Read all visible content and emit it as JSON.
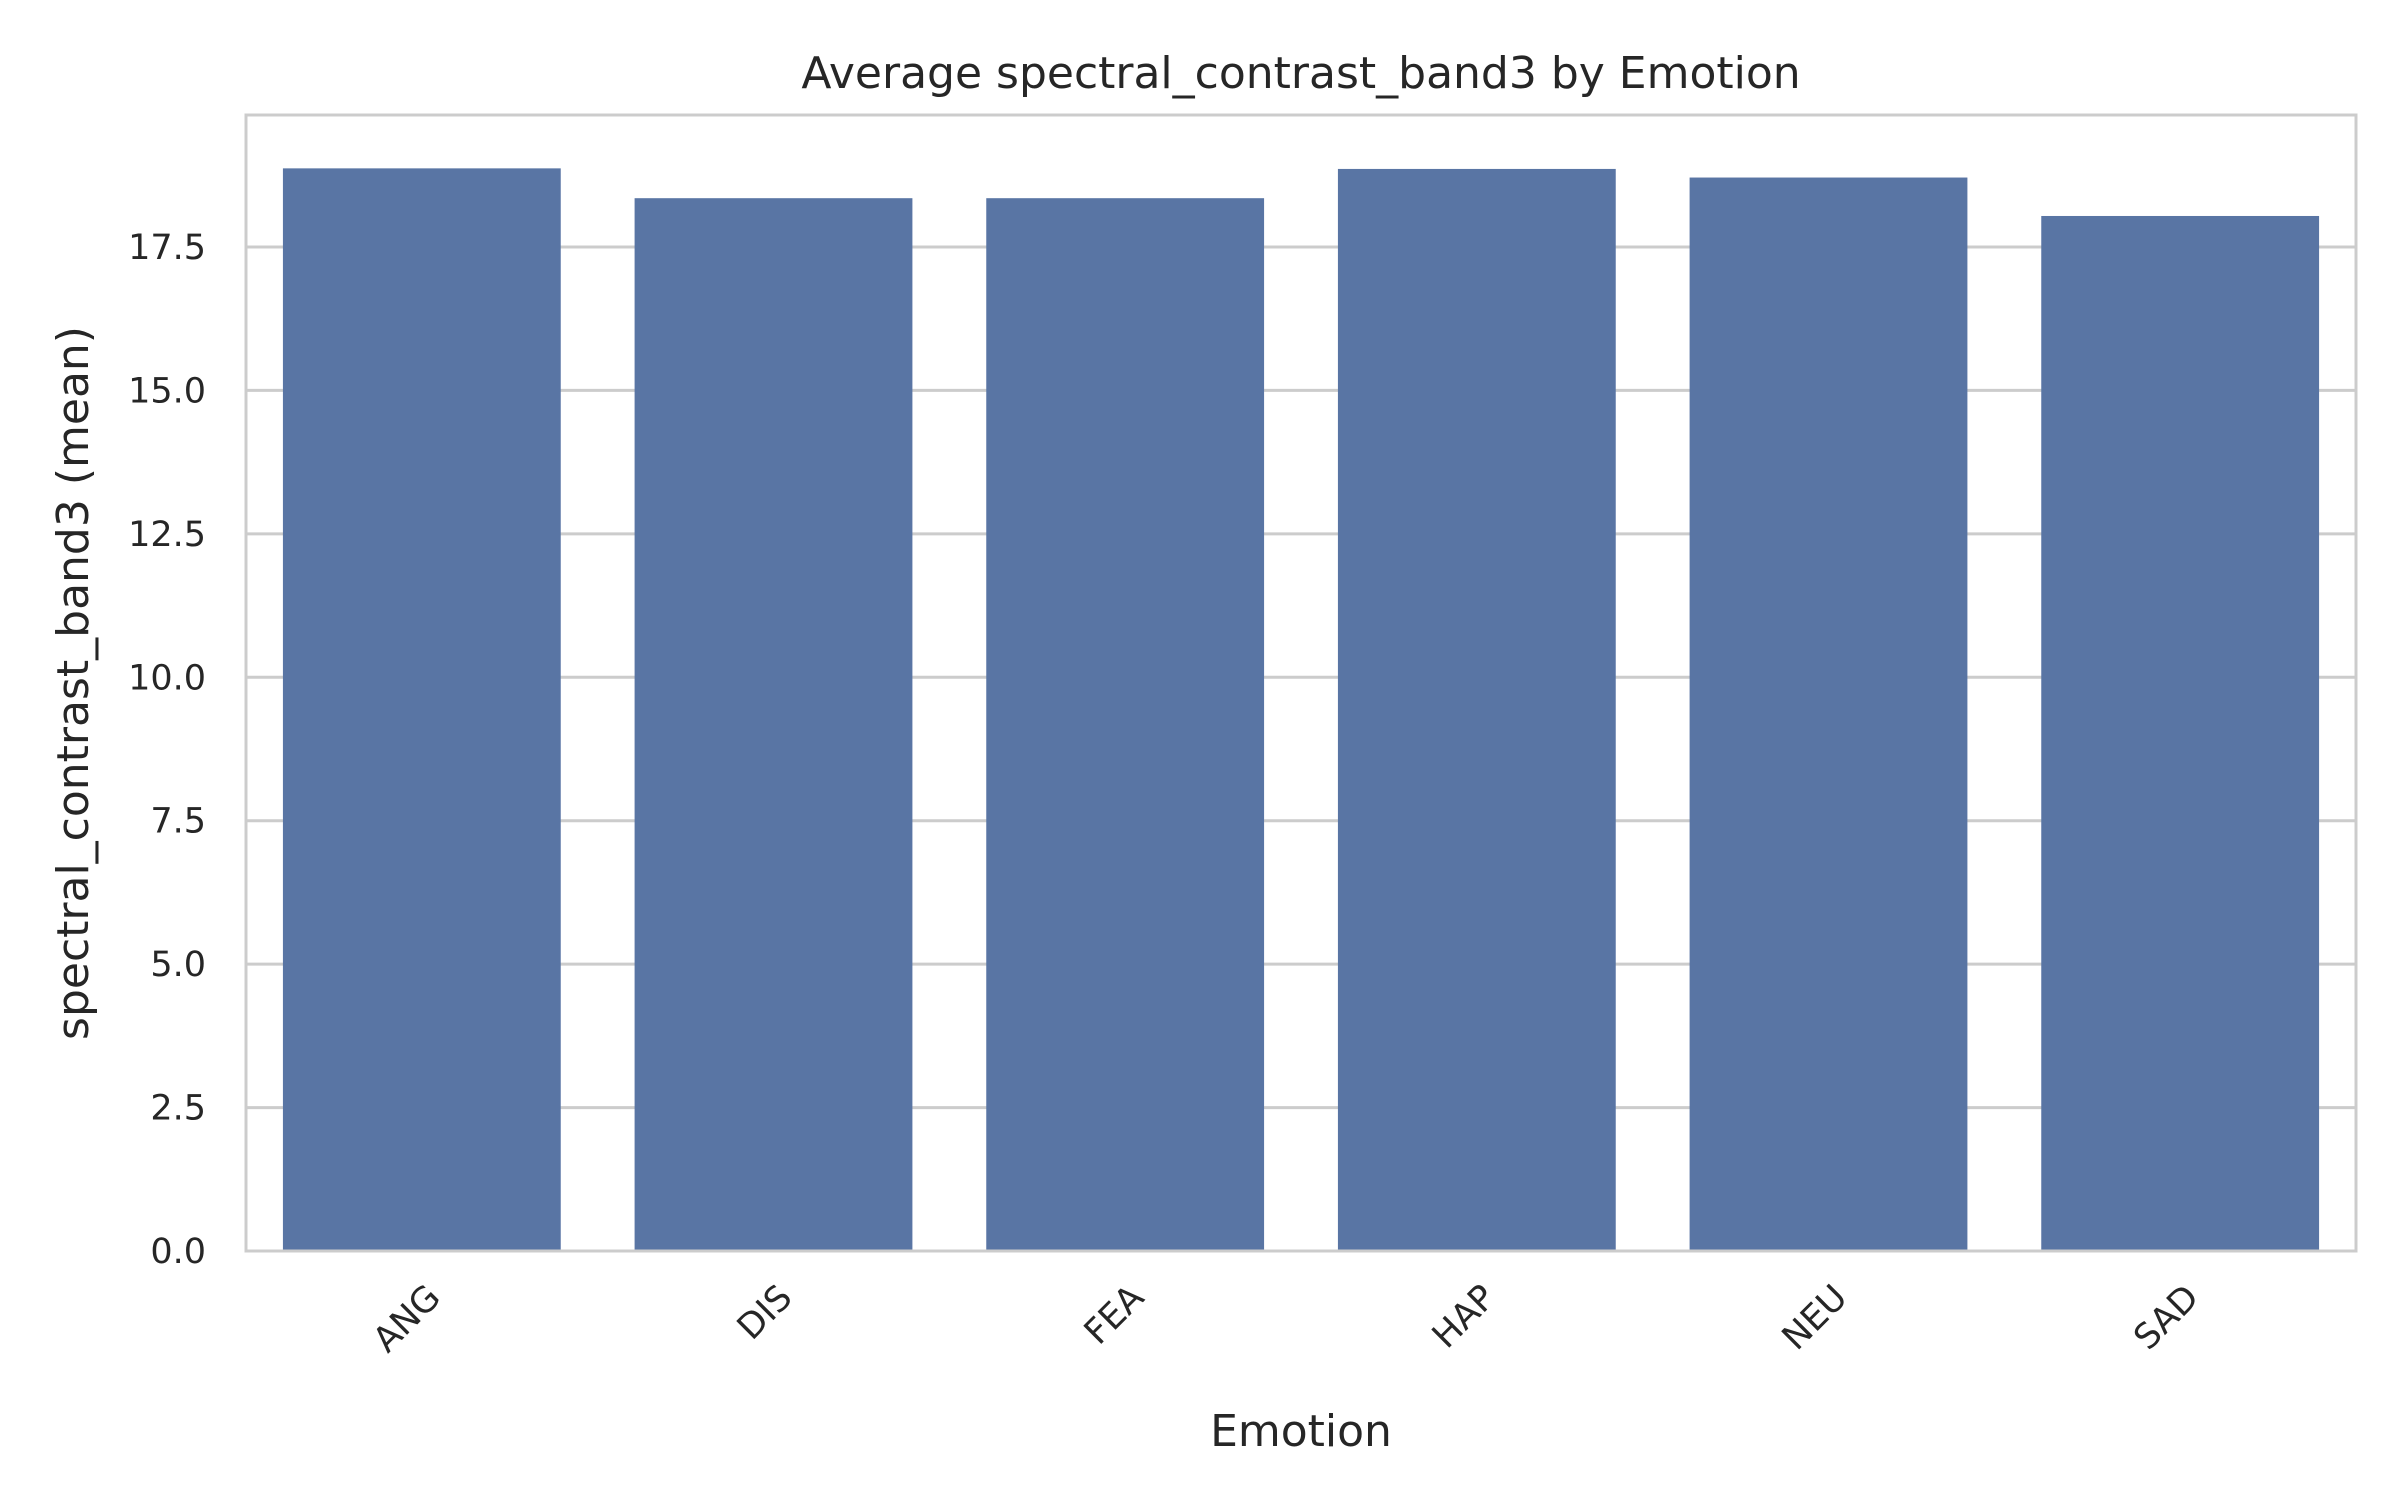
{
  "chart_data": {
    "type": "bar",
    "title": "Average spectral_contrast_band3 by Emotion",
    "xlabel": "Emotion",
    "ylabel": "spectral_contrast_band3 (mean)",
    "categories": [
      "ANG",
      "DIS",
      "FEA",
      "HAP",
      "NEU",
      "SAD"
    ],
    "values": [
      18.87,
      18.35,
      18.35,
      18.86,
      18.71,
      18.04
    ],
    "ylim": [
      0,
      19.8
    ],
    "yticks": [
      0.0,
      2.5,
      5.0,
      7.5,
      10.0,
      12.5,
      15.0,
      17.5
    ],
    "ytick_labels": [
      "0.0",
      "2.5",
      "5.0",
      "7.5",
      "10.0",
      "12.5",
      "15.0",
      "17.5"
    ],
    "grid": "horizontal",
    "bar_color": "#5975a4",
    "grid_color": "#cccccc",
    "spine_color": "#cccccc",
    "text_color": "#262626"
  }
}
